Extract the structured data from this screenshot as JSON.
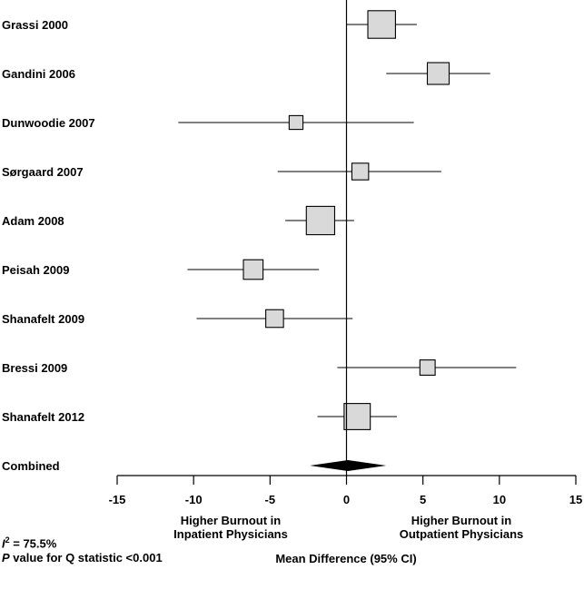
{
  "chart_data": {
    "type": "forest",
    "xlim": [
      -15,
      15
    ],
    "xticks": [
      -15,
      -10,
      -5,
      0,
      5,
      10,
      15
    ],
    "xlabel": "Mean Difference (95% CI)",
    "direction_labels": {
      "left": [
        "Higher Burnout in",
        "Inpatient Physicians"
      ],
      "right": [
        "Higher Burnout in",
        "Outpatient Physicians"
      ]
    },
    "studies": [
      {
        "name": "Grassi 2000",
        "estimate": 2.3,
        "ci_low": 0.0,
        "ci_high": 4.6,
        "weight": 1.4
      },
      {
        "name": "Gandini 2006",
        "estimate": 6.0,
        "ci_low": 2.6,
        "ci_high": 9.4,
        "weight": 1.0
      },
      {
        "name": "Dunwoodie 2007",
        "estimate": -3.3,
        "ci_low": -11.0,
        "ci_high": 4.4,
        "weight": 0.45
      },
      {
        "name": "Sørgaard 2007",
        "estimate": 0.9,
        "ci_low": -4.5,
        "ci_high": 6.2,
        "weight": 0.65
      },
      {
        "name": "Adam 2008",
        "estimate": -1.7,
        "ci_low": -4.0,
        "ci_high": 0.5,
        "weight": 1.45
      },
      {
        "name": "Peisah 2009",
        "estimate": -6.1,
        "ci_low": -10.4,
        "ci_high": -1.8,
        "weight": 0.85
      },
      {
        "name": "Shanafelt 2009",
        "estimate": -4.7,
        "ci_low": -9.8,
        "ci_high": 0.4,
        "weight": 0.72
      },
      {
        "name": "Bressi 2009",
        "estimate": 5.3,
        "ci_low": -0.6,
        "ci_high": 11.1,
        "weight": 0.55
      },
      {
        "name": "Shanafelt 2012",
        "estimate": 0.7,
        "ci_low": -1.9,
        "ci_high": 3.3,
        "weight": 1.3
      }
    ],
    "combined": {
      "name": "Combined",
      "estimate": 0.1,
      "ci_low": -2.4,
      "ci_high": 2.6
    }
  },
  "stats": {
    "i2_symbol": "I",
    "i2_sup": "2",
    "i2_value": " = 75.5%",
    "p_symbol": "P",
    "p_text": " value for Q statistic <0.001"
  }
}
